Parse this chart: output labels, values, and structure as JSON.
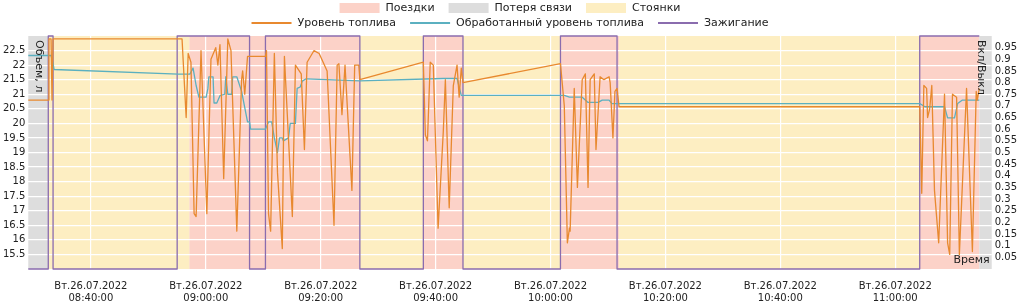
{
  "chart_data": {
    "type": "line",
    "xlabel": "Время",
    "ylabel": "Объем, л",
    "y2label": "Вкл/Выкл",
    "xlim": [
      "2022-07-26T08:29:06",
      "2022-07-26T11:16:48"
    ],
    "xticks": [
      {
        "value": "2022-07-26T08:40:00",
        "label": "Вт.26.07.2022 08:40:00"
      },
      {
        "value": "2022-07-26T09:00:00",
        "label": "Вт.26.07.2022 09:00:00"
      },
      {
        "value": "2022-07-26T09:20:00",
        "label": "Вт.26.07.2022 09:20:00"
      },
      {
        "value": "2022-07-26T09:40:00",
        "label": "Вт.26.07.2022 09:40:00"
      },
      {
        "value": "2022-07-26T10:00:00",
        "label": "Вт.26.07.2022 10:00:00"
      },
      {
        "value": "2022-07-26T10:20:00",
        "label": "Вт.26.07.2022 10:20:00"
      },
      {
        "value": "2022-07-26T10:40:00",
        "label": "Вт.26.07.2022 10:40:00"
      },
      {
        "value": "2022-07-26T11:00:00",
        "label": "Вт.26.07.2022 11:00:00"
      }
    ],
    "ylim": [
      15,
      23
    ],
    "yticks": [
      15.5,
      16,
      16.5,
      17,
      17.5,
      18,
      18.5,
      19,
      19.5,
      20,
      20.5,
      21,
      21.5,
      22,
      22.5
    ],
    "y2lim": [
      0,
      1
    ],
    "y2ticks": [
      0.05,
      0.1,
      0.15,
      0.2,
      0.25,
      0.3,
      0.35,
      0.4,
      0.45,
      0.5,
      0.55,
      0.6,
      0.65,
      0.7,
      0.75,
      0.8,
      0.85,
      0.9,
      0.95
    ],
    "grid": true,
    "legend": "top",
    "marker": "none",
    "bands": [
      {
        "axis": "x",
        "from": "2022-07-26T08:57:07",
        "to": "2022-07-26T09:26:49",
        "label": "Поездки",
        "color": "#fcd2c8"
      },
      {
        "axis": "x",
        "from": "2022-07-26T08:29:06",
        "to": "2022-07-26T08:32:35",
        "label": "Потеря связи",
        "color": "#dddddd"
      },
      {
        "axis": "x",
        "from": "2022-07-26T08:32:35",
        "to": "2022-07-26T08:57:07",
        "label": "Стоянки",
        "color": "#fdeec2"
      },
      {
        "axis": "x",
        "from": "2022-07-26T09:26:49",
        "to": "2022-07-26T09:37:52",
        "color": "#fdeec2"
      },
      {
        "axis": "x",
        "from": "2022-07-26T09:37:52",
        "to": "2022-07-26T09:44:46",
        "color": "#fcd2c8"
      },
      {
        "axis": "x",
        "from": "2022-07-26T09:44:46",
        "to": "2022-07-26T10:01:44",
        "color": "#fdeec2"
      },
      {
        "axis": "x",
        "from": "2022-07-26T10:01:44",
        "to": "2022-07-26T10:11:56",
        "color": "#fcd2c8"
      },
      {
        "axis": "x",
        "from": "2022-07-26T10:11:56",
        "to": "2022-07-26T11:04:19",
        "color": "#fdeec2"
      },
      {
        "axis": "x",
        "from": "2022-07-26T11:04:19",
        "to": "2022-07-26T11:14:38",
        "color": "#fcd2c8"
      },
      {
        "axis": "x",
        "from": "2022-07-26T11:14:38",
        "to": "2022-07-26T11:16:48",
        "color": "#dddddd"
      }
    ],
    "series": [
      {
        "name": "Уровень топлива",
        "type": "line",
        "color": "#e8892f",
        "x": [
          "2022-07-26T08:29:06",
          "2022-07-26T08:32:35",
          "2022-07-26T08:32:42",
          "2022-07-26T08:33:04",
          "2022-07-26T08:33:14",
          "2022-07-26T08:33:25",
          "2022-07-26T08:55:12",
          "2022-07-26T08:55:52",
          "2022-07-26T08:56:35",
          "2022-07-26T08:56:56",
          "2022-07-26T08:57:25",
          "2022-07-26T08:57:58",
          "2022-07-26T08:58:19",
          "2022-07-26T08:59:10",
          "2022-07-26T09:00:11",
          "2022-07-26T09:00:54",
          "2022-07-26T09:01:44",
          "2022-07-26T09:02:06",
          "2022-07-26T09:02:28",
          "2022-07-26T09:03:07",
          "2022-07-26T09:03:50",
          "2022-07-26T09:04:23",
          "2022-07-26T09:05:24",
          "2022-07-26T09:06:14",
          "2022-07-26T09:06:25",
          "2022-07-26T09:06:47",
          "2022-07-26T09:07:16",
          "2022-07-26T09:07:37",
          "2022-07-26T09:10:23",
          "2022-07-26T09:10:34",
          "2022-07-26T09:10:55",
          "2022-07-26T09:11:17",
          "2022-07-26T09:11:56",
          "2022-07-26T09:12:29",
          "2022-07-26T09:13:19",
          "2022-07-26T09:13:41",
          "2022-07-26T09:15:04",
          "2022-07-26T09:15:36",
          "2022-07-26T09:16:37",
          "2022-07-26T09:17:10",
          "2022-07-26T09:17:38",
          "2022-07-26T09:18:32",
          "2022-07-26T09:18:50",
          "2022-07-26T09:19:44",
          "2022-07-26T09:21:07",
          "2022-07-26T09:22:19",
          "2022-07-26T09:22:52",
          "2022-07-26T09:23:10",
          "2022-07-26T09:23:42",
          "2022-07-26T09:24:14",
          "2022-07-26T09:25:26",
          "2022-07-26T09:25:55",
          "2022-07-26T09:26:38",
          "2022-07-26T09:26:49",
          "2022-07-26T09:37:52",
          "2022-07-26T09:38:13",
          "2022-07-26T09:38:35",
          "2022-07-26T09:39:04",
          "2022-07-26T09:39:36",
          "2022-07-26T09:40:26",
          "2022-07-26T09:41:20",
          "2022-07-26T09:41:42",
          "2022-07-26T09:42:22",
          "2022-07-26T09:43:05",
          "2022-07-26T09:43:44",
          "2022-07-26T09:44:06",
          "2022-07-26T09:44:28",
          "2022-07-26T09:44:46",
          "2022-07-26T10:01:44",
          "2022-07-26T10:02:24",
          "2022-07-26T10:02:56",
          "2022-07-26T10:03:18",
          "2022-07-26T10:03:25",
          "2022-07-26T10:04:08",
          "2022-07-26T10:04:41",
          "2022-07-26T10:05:31",
          "2022-07-26T10:06:04",
          "2022-07-26T10:06:32",
          "2022-07-26T10:06:54",
          "2022-07-26T10:07:37",
          "2022-07-26T10:07:55",
          "2022-07-26T10:08:38",
          "2022-07-26T10:09:18",
          "2022-07-26T10:10:12",
          "2022-07-26T10:10:23",
          "2022-07-26T10:10:52",
          "2022-07-26T10:11:13",
          "2022-07-26T10:11:35",
          "2022-07-26T10:11:56",
          "2022-07-26T11:04:16",
          "2022-07-26T11:04:37",
          "2022-07-26T11:04:59",
          "2022-07-26T11:05:28",
          "2022-07-26T11:05:38",
          "2022-07-26T11:06:00",
          "2022-07-26T11:06:22",
          "2022-07-26T11:06:50",
          "2022-07-26T11:07:34",
          "2022-07-26T11:08:35",
          "2022-07-26T11:09:07",
          "2022-07-26T11:09:29",
          "2022-07-26T11:09:58",
          "2022-07-26T11:10:41",
          "2022-07-26T11:11:10",
          "2022-07-26T11:12:25",
          "2022-07-26T11:13:26",
          "2022-07-26T11:14:06",
          "2022-07-26T11:14:17",
          "2022-07-26T11:14:38"
        ],
        "values": [
          20.8,
          20.8,
          22.9,
          22.9,
          20.8,
          22.9,
          22.9,
          22.9,
          20.2,
          22.4,
          22.1,
          16.9,
          16.8,
          22.5,
          16.9,
          22.2,
          22.6,
          22.0,
          22.7,
          18.1,
          22.9,
          22.5,
          16.3,
          21.5,
          21.8,
          21.0,
          22.3,
          22.3,
          22.3,
          22.5,
          16.9,
          16.3,
          22.4,
          18.3,
          15.7,
          22.3,
          16.8,
          22.0,
          21.7,
          19.1,
          22.1,
          22.4,
          22.5,
          22.4,
          21.8,
          16.5,
          22.0,
          22.05,
          20.3,
          22.0,
          17.7,
          22.0,
          22.0,
          21.5,
          22.1,
          19.6,
          19.4,
          22.1,
          22.0,
          16.4,
          19.7,
          21.5,
          17.1,
          21.3,
          22.0,
          20.9,
          21.9,
          21.4,
          22.05,
          20.6,
          15.9,
          16.4,
          16.3,
          21.2,
          17.8,
          21.5,
          21.7,
          17.8,
          21.5,
          21.7,
          19.1,
          21.6,
          21.5,
          21.6,
          21.4,
          19.5,
          21.1,
          21.2,
          20.57,
          20.57,
          17.6,
          21.3,
          21.2,
          20.2,
          20.5,
          21.3,
          17.7,
          15.9,
          21.0,
          15.9,
          15.5,
          21.0,
          20.9,
          15.5,
          21.2,
          15.6,
          21.1,
          20.8,
          21.2
        ]
      },
      {
        "name": "Обработанный уровень топлива",
        "type": "line",
        "color": "#5bb0c0",
        "x": [
          "2022-07-26T08:29:06",
          "2022-07-26T08:33:04",
          "2022-07-26T08:33:25",
          "2022-07-26T08:33:36",
          "2022-07-26T08:55:12",
          "2022-07-26T08:57:14",
          "2022-07-26T08:57:47",
          "2022-07-26T08:58:19",
          "2022-07-26T08:58:48",
          "2022-07-26T09:00:04",
          "2022-07-26T09:00:22",
          "2022-07-26T09:00:32",
          "2022-07-26T09:01:16",
          "2022-07-26T09:01:26",
          "2022-07-26T09:01:55",
          "2022-07-26T09:02:28",
          "2022-07-26T09:03:18",
          "2022-07-26T09:03:29",
          "2022-07-26T09:03:50",
          "2022-07-26T09:04:30",
          "2022-07-26T09:04:41",
          "2022-07-26T09:05:24",
          "2022-07-26T09:06:14",
          "2022-07-26T09:07:16",
          "2022-07-26T09:07:37",
          "2022-07-26T09:07:48",
          "2022-07-26T09:10:23",
          "2022-07-26T09:10:55",
          "2022-07-26T09:11:28",
          "2022-07-26T09:11:56",
          "2022-07-26T09:12:29",
          "2022-07-26T09:12:50",
          "2022-07-26T09:13:19",
          "2022-07-26T09:13:30",
          "2022-07-26T09:14:24",
          "2022-07-26T09:14:42",
          "2022-07-26T09:15:36",
          "2022-07-26T09:15:54",
          "2022-07-26T09:16:26",
          "2022-07-26T09:16:48",
          "2022-07-26T09:17:28",
          "2022-07-26T09:26:49",
          "2022-07-26T09:41:20",
          "2022-07-26T09:43:44",
          "2022-07-26T09:44:28",
          "2022-07-26T10:02:24",
          "2022-07-26T10:03:18",
          "2022-07-26T10:05:31",
          "2022-07-26T10:06:32",
          "2022-07-26T10:08:17",
          "2022-07-26T10:09:00",
          "2022-07-26T10:10:12",
          "2022-07-26T10:10:41",
          "2022-07-26T11:04:16",
          "2022-07-26T11:05:10",
          "2022-07-26T11:08:35",
          "2022-07-26T11:09:07",
          "2022-07-26T11:10:19",
          "2022-07-26T11:10:52",
          "2022-07-26T11:11:42",
          "2022-07-26T11:14:38"
        ],
        "values": [
          22.33,
          22.33,
          22.05,
          21.85,
          21.69,
          21.69,
          21.9,
          21.3,
          20.9,
          20.9,
          21.2,
          21.6,
          21.6,
          20.7,
          20.7,
          20.95,
          21.0,
          21.6,
          21.0,
          21.0,
          21.6,
          21.6,
          21.1,
          20.05,
          20.05,
          19.8,
          19.8,
          20.05,
          20.05,
          19.5,
          19.0,
          19.5,
          19.5,
          19.4,
          19.5,
          20.0,
          20.0,
          21.2,
          21.25,
          21.45,
          21.53,
          21.46,
          21.54,
          21.54,
          20.96,
          20.96,
          20.9,
          20.9,
          20.72,
          20.72,
          20.8,
          20.8,
          20.68,
          20.68,
          20.57,
          20.57,
          20.19,
          20.19,
          20.68,
          20.8,
          20.8
        ]
      },
      {
        "name": "Зажигание",
        "type": "step",
        "axis": "y2",
        "color": "#8a6cae",
        "x": [
          "2022-07-26T08:29:06",
          "2022-07-26T08:32:35",
          "2022-07-26T08:33:25",
          "2022-07-26T08:55:01",
          "2022-07-26T09:07:37",
          "2022-07-26T09:10:23",
          "2022-07-26T09:26:49",
          "2022-07-26T09:37:52",
          "2022-07-26T09:44:46",
          "2022-07-26T10:01:44",
          "2022-07-26T10:11:35",
          "2022-07-26T11:04:16",
          "2022-07-26T11:14:38"
        ],
        "values": [
          0,
          1,
          0,
          1,
          0,
          1,
          0,
          1,
          0,
          1,
          0,
          1,
          1
        ]
      }
    ]
  }
}
